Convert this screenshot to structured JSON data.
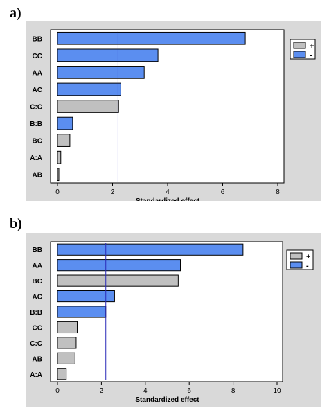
{
  "panels": [
    {
      "label": "a)"
    },
    {
      "label": "b)"
    }
  ],
  "chart_data": [
    {
      "type": "bar",
      "orientation": "horizontal",
      "title": "",
      "xlabel": "Standardized effect",
      "ylabel": "",
      "xlim": [
        0,
        8
      ],
      "xticks": [
        0,
        2,
        4,
        6,
        8
      ],
      "grid": false,
      "legend_placement": "top-right",
      "legend": [
        {
          "key": "positive",
          "label": "+",
          "color": "#c0c0c0"
        },
        {
          "key": "negative",
          "label": "-",
          "color": "#5b8ef0"
        }
      ],
      "reference_line": 2.2,
      "categories": [
        "BB",
        "CC",
        "AA",
        "AC",
        "C:C",
        "B:B",
        "BC",
        "A:A",
        "AB"
      ],
      "values": [
        6.82,
        3.65,
        3.15,
        2.3,
        2.22,
        0.55,
        0.45,
        0.12,
        0.05
      ],
      "signs": [
        "-",
        "-",
        "-",
        "-",
        "+",
        "-",
        "+",
        "+",
        "+"
      ]
    },
    {
      "type": "bar",
      "orientation": "horizontal",
      "title": "",
      "xlabel": "Standardized effect",
      "ylabel": "",
      "xlim": [
        0,
        10
      ],
      "xticks": [
        0,
        2,
        4,
        6,
        8,
        10
      ],
      "grid": false,
      "legend_placement": "top-right",
      "legend": [
        {
          "key": "positive",
          "label": "+",
          "color": "#c0c0c0"
        },
        {
          "key": "negative",
          "label": "-",
          "color": "#5b8ef0"
        }
      ],
      "reference_line": 2.2,
      "categories": [
        "BB",
        "AA",
        "BC",
        "AC",
        "B:B",
        "CC",
        "C:C",
        "AB",
        "A:A"
      ],
      "values": [
        8.45,
        5.6,
        5.5,
        2.6,
        2.2,
        0.9,
        0.85,
        0.8,
        0.4
      ],
      "signs": [
        "-",
        "-",
        "+",
        "-",
        "-",
        "+",
        "+",
        "+",
        "+"
      ]
    }
  ]
}
